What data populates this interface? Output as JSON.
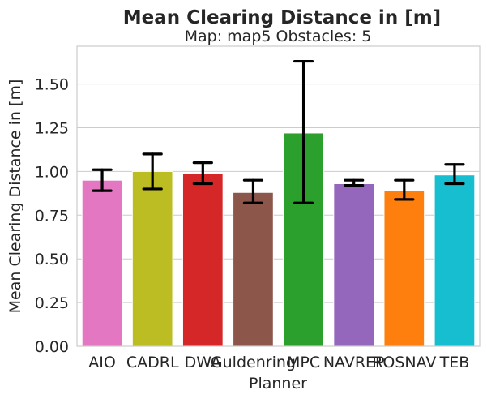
{
  "chart_data": {
    "type": "bar",
    "title": "Mean Clearing Distance in [m]",
    "subtitle": "Map: map5 Obstacles: 5",
    "xlabel": "Planner",
    "ylabel": "Mean Clearing Distance in [m]",
    "ylim": [
      0,
      1.72
    ],
    "yticks": [
      "0.00",
      "0.25",
      "0.50",
      "0.75",
      "1.00",
      "1.25",
      "1.50"
    ],
    "grid": true,
    "categories": [
      "AIO",
      "CADRL",
      "DWA",
      "Guldenring",
      "MPC",
      "NAVREP",
      "ROSNAV",
      "TEB"
    ],
    "values": [
      0.95,
      1.0,
      0.99,
      0.88,
      1.22,
      0.93,
      0.89,
      0.98
    ],
    "error_low": [
      0.89,
      0.9,
      0.93,
      0.82,
      0.82,
      0.92,
      0.84,
      0.93
    ],
    "error_high": [
      1.01,
      1.1,
      1.05,
      0.95,
      1.63,
      0.95,
      0.95,
      1.04
    ],
    "colors": [
      "#e377c2",
      "#bcbd22",
      "#d62728",
      "#8c564b",
      "#2ca02c",
      "#9467bd",
      "#ff7f0e",
      "#17becf"
    ]
  }
}
